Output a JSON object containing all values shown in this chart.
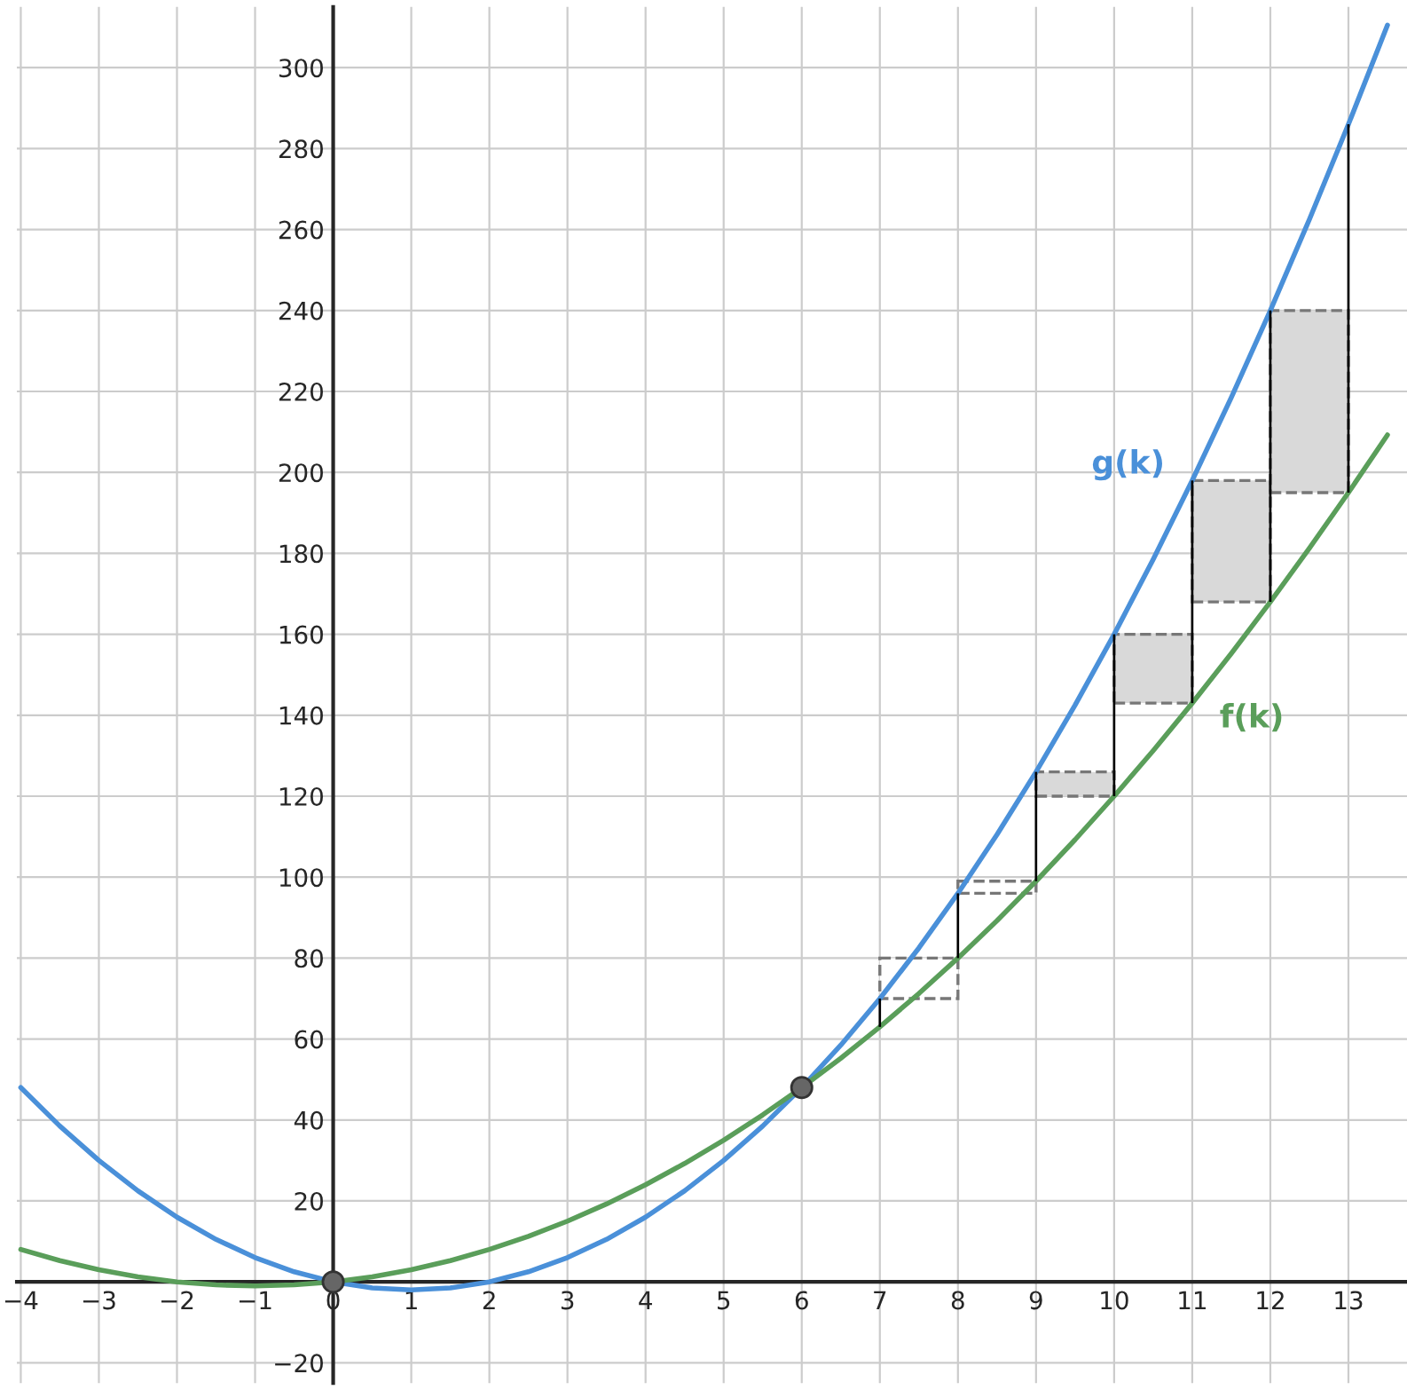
{
  "chart_data": {
    "type": "line",
    "xlim": [
      -4.05,
      13.75
    ],
    "ylim": [
      -25,
      315
    ],
    "xticks": [
      {
        "value": -4,
        "label": "−4"
      },
      {
        "value": -3,
        "label": "−3"
      },
      {
        "value": -2,
        "label": "−2"
      },
      {
        "value": -1,
        "label": "−1"
      },
      0,
      1,
      2,
      3,
      4,
      5,
      6,
      7,
      8,
      9,
      10,
      11,
      12,
      13
    ],
    "yticks": [
      {
        "value": -20,
        "label": "−20"
      },
      20,
      40,
      60,
      80,
      100,
      120,
      140,
      160,
      180,
      200,
      220,
      240,
      260,
      280,
      300
    ],
    "grid": true,
    "legend": false,
    "series": [
      {
        "name": "g(k)",
        "color": "#4a90d9",
        "x": [
          -4,
          -3.5,
          -3,
          -2.5,
          -2,
          -1.5,
          -1,
          -0.5,
          0,
          0.5,
          1,
          1.5,
          2,
          2.5,
          3,
          3.5,
          4,
          4.5,
          5,
          5.5,
          6,
          6.5,
          7,
          7.5,
          8,
          8.5,
          9,
          9.5,
          10,
          10.5,
          11,
          11.5,
          12,
          12.5,
          13,
          13.5
        ],
        "values": [
          48,
          38.5,
          30,
          22.5,
          16,
          10.5,
          6,
          2.5,
          0,
          -1.5,
          -2,
          -1.5,
          0,
          2.5,
          6,
          10.5,
          16,
          22.5,
          30,
          38.5,
          48,
          58.5,
          70,
          82.5,
          96,
          110.5,
          126,
          142.5,
          160,
          178.5,
          198,
          218.5,
          240,
          262.5,
          286,
          310.5
        ]
      },
      {
        "name": "f(k)",
        "color": "#5a9e5a",
        "x": [
          -4,
          -3.5,
          -3,
          -2.5,
          -2,
          -1.5,
          -1,
          -0.5,
          0,
          0.5,
          1,
          1.5,
          2,
          2.5,
          3,
          3.5,
          4,
          4.5,
          5,
          5.5,
          6,
          6.5,
          7,
          7.5,
          8,
          8.5,
          9,
          9.5,
          10,
          10.5,
          11,
          11.5,
          12,
          12.5,
          13,
          13.5
        ],
        "values": [
          8,
          5.25,
          3,
          1.25,
          0,
          -0.75,
          -1,
          -0.75,
          0,
          1.25,
          3,
          5.25,
          8,
          11.25,
          15,
          19.25,
          24,
          29.25,
          35,
          41.25,
          48,
          55.25,
          63,
          71.25,
          80,
          89.25,
          99,
          109.25,
          120,
          131.25,
          143,
          155.25,
          168,
          181.25,
          195,
          209.25
        ]
      },
      {
        "type": "bar",
        "x": [
          7.5,
          8.5,
          9.5,
          10.5,
          11.5,
          12.5
        ],
        "base": [
          80,
          99,
          120,
          143,
          168,
          195
        ],
        "values": [
          -10,
          -3,
          6,
          17,
          30,
          45
        ],
        "colors": [
          "#ffffff",
          "#ffffff",
          "#d9d9d9",
          "#d9d9d9",
          "#d9d9d9",
          "#d9d9d9"
        ],
        "line_style": "dashed"
      },
      {
        "type": "bar",
        "color": "#000000",
        "x": [
          7,
          8,
          9,
          10,
          11,
          12,
          13
        ],
        "base": [
          63,
          80,
          99,
          120,
          143,
          168,
          195
        ],
        "values": [
          7,
          16,
          27,
          40,
          55,
          72,
          91
        ]
      },
      {
        "type": "scatter",
        "color": "#666666",
        "marker": "circle",
        "x": [
          0,
          6
        ],
        "values": [
          0,
          48
        ]
      }
    ]
  }
}
